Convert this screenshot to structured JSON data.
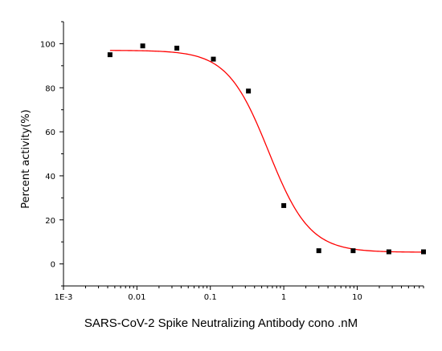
{
  "chart_data": {
    "type": "scatter",
    "xlabel": "SARS-CoV-2 Spike Neutralizing Antibody cono .nM",
    "ylabel": "Percent activity(%)",
    "x_scale": "log",
    "xlim": [
      0.001,
      80
    ],
    "ylim": [
      -10,
      110
    ],
    "x_ticks": [
      0.001,
      0.01,
      0.1,
      1,
      10
    ],
    "x_tick_labels": [
      "1E-3",
      "0.01",
      "0.1",
      "1",
      "10"
    ],
    "y_ticks": [
      0,
      20,
      40,
      60,
      80,
      100
    ],
    "y_tick_labels": [
      "0",
      "20",
      "40",
      "60",
      "80",
      "100"
    ],
    "series": [
      {
        "points": [
          {
            "x": 0.0043,
            "y": 95
          },
          {
            "x": 0.012,
            "y": 99
          },
          {
            "x": 0.035,
            "y": 98
          },
          {
            "x": 0.11,
            "y": 93
          },
          {
            "x": 0.33,
            "y": 78.5
          },
          {
            "x": 1.0,
            "y": 26.5
          },
          {
            "x": 3.0,
            "y": 6
          },
          {
            "x": 8.8,
            "y": 6
          },
          {
            "x": 27,
            "y": 5.5
          },
          {
            "x": 80,
            "y": 5.5
          }
        ],
        "marker_color": "#000000"
      }
    ],
    "fit_curve": {
      "model": "four-parameter logistic",
      "top": 97,
      "bottom": 5.3,
      "ec50": 0.62,
      "hill": 1.55,
      "color": "#ff0000"
    },
    "grid": false,
    "legend": "none"
  }
}
